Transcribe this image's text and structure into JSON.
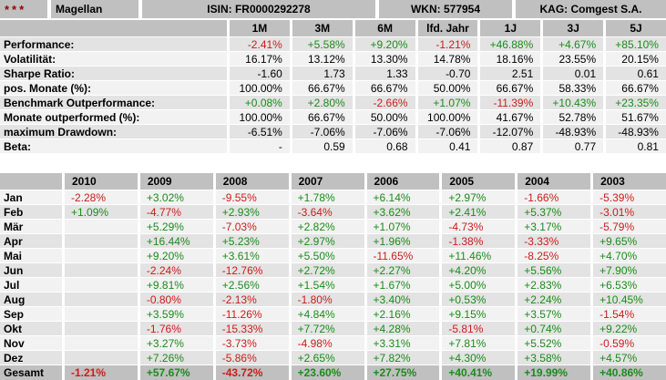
{
  "header": {
    "stars": "***",
    "fund_name": "Magellan",
    "isin": "ISIN: FR0000292278",
    "wkn": "WKN: 577954",
    "kag": "KAG: Comgest S.A."
  },
  "colors": {
    "positive": "#1b8c1b",
    "negative": "#cc1c1c",
    "header_gray": "#c0c0c0",
    "row_dark": "#e3e3e3",
    "row_light": "#f2f2f2",
    "stars_red": "#990000"
  },
  "stats_table": {
    "columns": [
      "1M",
      "3M",
      "6M",
      "lfd. Jahr",
      "1J",
      "3J",
      "5J"
    ],
    "rows": [
      {
        "label": "Performance:",
        "colored": true,
        "values": [
          "-2.41%",
          "+5.58%",
          "+9.20%",
          "-1.21%",
          "+46.88%",
          "+4.67%",
          "+85.10%"
        ]
      },
      {
        "label": "Volatilität:",
        "colored": false,
        "values": [
          "16.17%",
          "13.12%",
          "13.30%",
          "14.78%",
          "18.16%",
          "23.55%",
          "20.15%"
        ]
      },
      {
        "label": "Sharpe Ratio:",
        "colored": false,
        "values": [
          "-1.60",
          "1.73",
          "1.33",
          "-0.70",
          "2.51",
          "0.01",
          "0.61"
        ]
      },
      {
        "label": "pos. Monate (%):",
        "colored": false,
        "values": [
          "100.00%",
          "66.67%",
          "66.67%",
          "50.00%",
          "66.67%",
          "58.33%",
          "66.67%"
        ]
      },
      {
        "label": "Benchmark Outperformance:",
        "colored": true,
        "values": [
          "+0.08%",
          "+2.80%",
          "-2.66%",
          "+1.07%",
          "-11.39%",
          "+10.43%",
          "+23.35%"
        ]
      },
      {
        "label": "Monate outperformed (%):",
        "colored": false,
        "values": [
          "100.00%",
          "66.67%",
          "50.00%",
          "100.00%",
          "41.67%",
          "52.78%",
          "51.67%"
        ]
      },
      {
        "label": "maximum Drawdown:",
        "colored": false,
        "values": [
          "-6.51%",
          "-7.06%",
          "-7.06%",
          "-7.06%",
          "-12.07%",
          "-48.93%",
          "-48.93%"
        ]
      },
      {
        "label": "Beta:",
        "colored": false,
        "values": [
          "-",
          "0.59",
          "0.68",
          "0.41",
          "0.87",
          "0.77",
          "0.81"
        ]
      }
    ]
  },
  "monthly_table": {
    "columns": [
      "2010",
      "2009",
      "2008",
      "2007",
      "2006",
      "2005",
      "2004",
      "2003"
    ],
    "rows": [
      {
        "label": "Jan",
        "values": [
          "-2.28%",
          "+3.02%",
          "-9.55%",
          "+1.78%",
          "+6.14%",
          "+2.97%",
          "-1.66%",
          "-5.39%"
        ]
      },
      {
        "label": "Feb",
        "values": [
          "+1.09%",
          "-4.77%",
          "+2.93%",
          "-3.64%",
          "+3.62%",
          "+2.41%",
          "+5.37%",
          "-3.01%"
        ]
      },
      {
        "label": "Mär",
        "values": [
          "",
          "+5.29%",
          "-7.03%",
          "+2.82%",
          "+1.07%",
          "-4.73%",
          "+3.17%",
          "-5.79%"
        ]
      },
      {
        "label": "Apr",
        "values": [
          "",
          "+16.44%",
          "+5.23%",
          "+2.97%",
          "+1.96%",
          "-1.38%",
          "-3.33%",
          "+9.65%"
        ]
      },
      {
        "label": "Mai",
        "values": [
          "",
          "+9.20%",
          "+3.61%",
          "+5.50%",
          "-11.65%",
          "+11.46%",
          "-8.25%",
          "+4.70%"
        ]
      },
      {
        "label": "Jun",
        "values": [
          "",
          "-2.24%",
          "-12.76%",
          "+2.72%",
          "+2.27%",
          "+4.20%",
          "+5.56%",
          "+7.90%"
        ]
      },
      {
        "label": "Jul",
        "values": [
          "",
          "+9.81%",
          "+2.56%",
          "+1.54%",
          "+1.67%",
          "+5.00%",
          "+2.83%",
          "+6.53%"
        ]
      },
      {
        "label": "Aug",
        "values": [
          "",
          "-0.80%",
          "-2.13%",
          "-1.80%",
          "+3.40%",
          "+0.53%",
          "+2.24%",
          "+10.45%"
        ]
      },
      {
        "label": "Sep",
        "values": [
          "",
          "+3.59%",
          "-11.26%",
          "+4.84%",
          "+2.16%",
          "+9.15%",
          "+3.57%",
          "-1.54%"
        ]
      },
      {
        "label": "Okt",
        "values": [
          "",
          "-1.76%",
          "-15.33%",
          "+7.72%",
          "+4.28%",
          "-5.81%",
          "+0.74%",
          "+9.22%"
        ]
      },
      {
        "label": "Nov",
        "values": [
          "",
          "+3.27%",
          "-3.73%",
          "-4.98%",
          "+3.31%",
          "+7.81%",
          "+5.52%",
          "-0.59%"
        ]
      },
      {
        "label": "Dez",
        "values": [
          "",
          "+7.26%",
          "-5.86%",
          "+2.65%",
          "+7.82%",
          "+4.30%",
          "+3.58%",
          "+4.57%"
        ]
      }
    ],
    "total_row": {
      "label": "Gesamt",
      "values": [
        "-1.21%",
        "+57.67%",
        "-43.72%",
        "+23.60%",
        "+27.75%",
        "+40.41%",
        "+19.99%",
        "+40.86%"
      ]
    }
  }
}
